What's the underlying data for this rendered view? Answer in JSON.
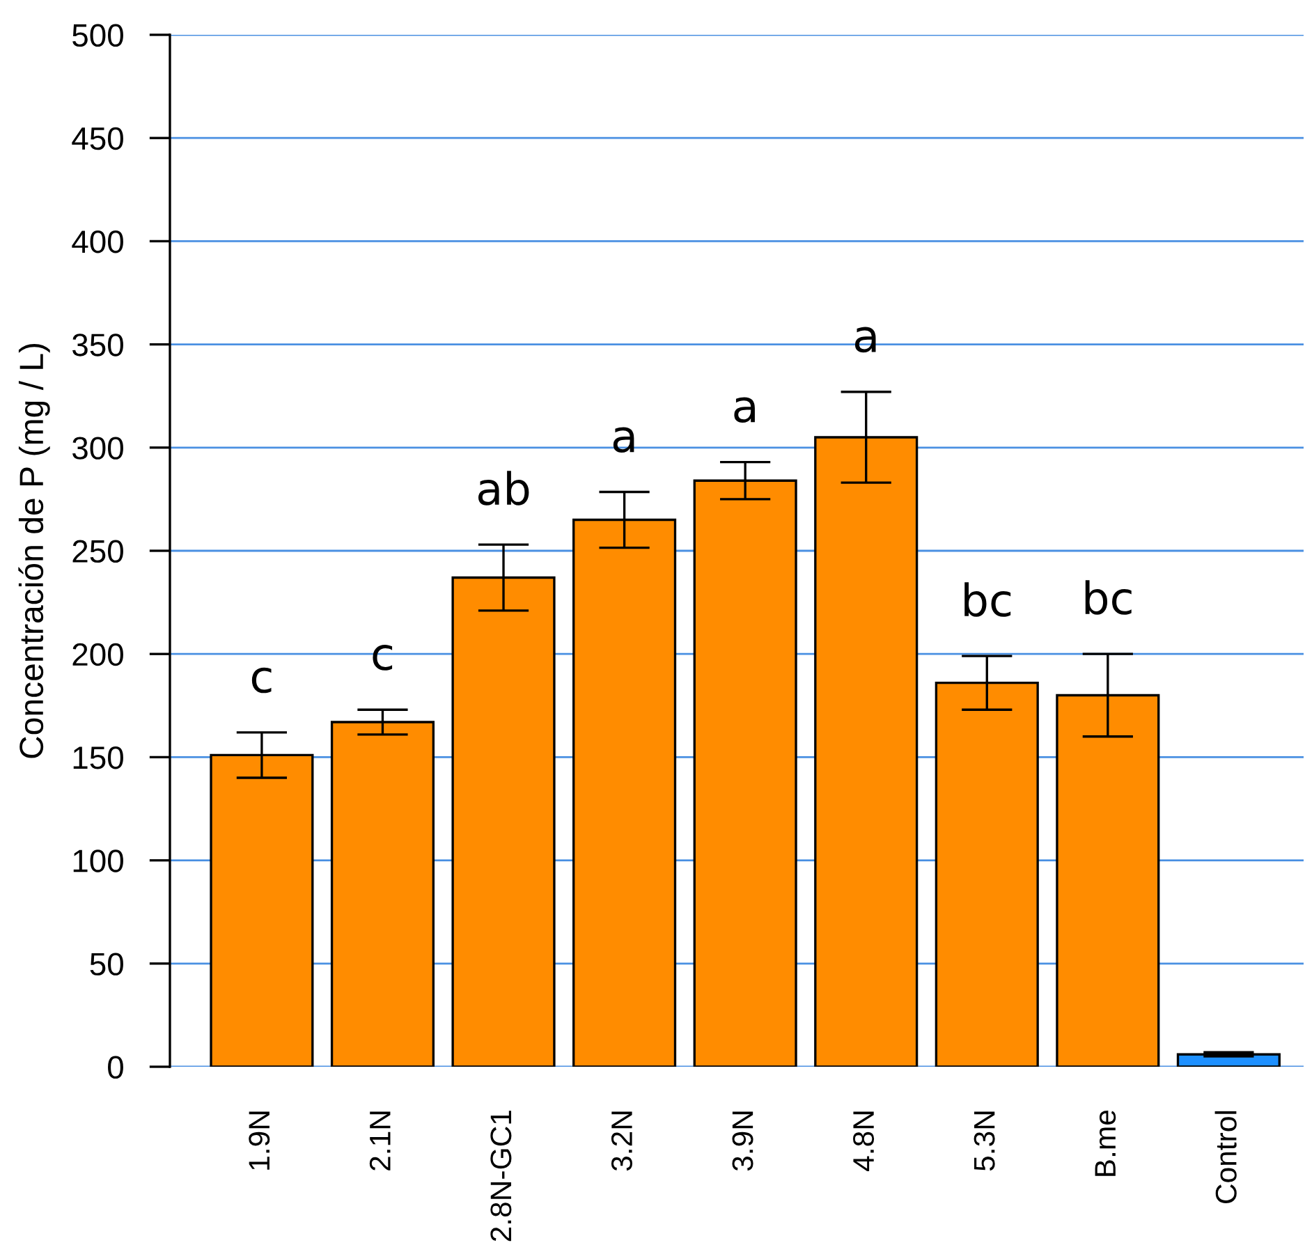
{
  "chart_data": {
    "type": "bar",
    "ylabel": "Concentración de P (mg / L)",
    "categories": [
      "1.9N",
      "2.1N",
      "2.8N-GC1",
      "3.2N",
      "3.9N",
      "4.8N",
      "5.3N",
      "B.me",
      "Control"
    ],
    "values": [
      151,
      167,
      237,
      265,
      284,
      305,
      186,
      180,
      6
    ],
    "errors": [
      11,
      6,
      16,
      13.5,
      9,
      22,
      13,
      20,
      1
    ],
    "colors": [
      "#ff8c00",
      "#ff8c00",
      "#ff8c00",
      "#ff8c00",
      "#ff8c00",
      "#ff8c00",
      "#ff8c00",
      "#ff8c00",
      "#1e90ff"
    ],
    "ylim": [
      0,
      500
    ],
    "yticks": [
      0,
      50,
      100,
      150,
      200,
      250,
      300,
      350,
      400,
      450,
      500
    ],
    "grid": "y",
    "annotations": [
      {
        "text": "c",
        "x": "1.9N",
        "y": 151
      },
      {
        "text": "c",
        "x": "2.1N",
        "y": 167
      },
      {
        "text": "ab",
        "x": "2.8N-GC1",
        "y": 237
      },
      {
        "text": "a",
        "x": "3.2N",
        "y": 265
      },
      {
        "text": "a",
        "x": "3.9N",
        "y": 284
      },
      {
        "text": "a",
        "x": "4.8N",
        "y": 305
      },
      {
        "text": "bc",
        "x": "5.3N",
        "y": 186
      },
      {
        "text": "bc",
        "x": "B.me",
        "y": 180
      }
    ]
  }
}
